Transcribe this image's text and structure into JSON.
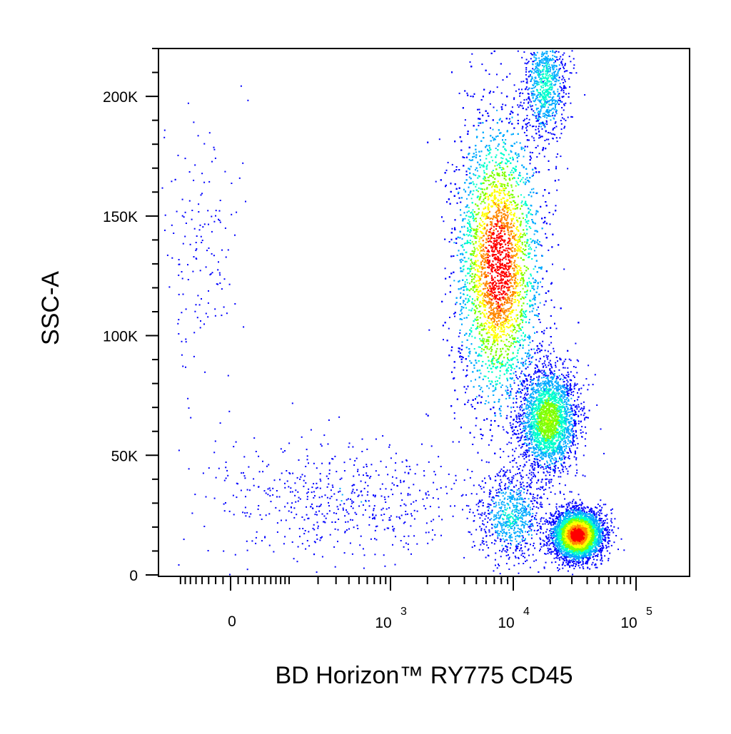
{
  "chart_data": {
    "type": "scatter",
    "subtype": "flow-cytometry-density-dot-plot",
    "title": "",
    "xlabel": "BD Horizon™ RY775 CD45",
    "ylabel": "SSC-A",
    "x_scale": "biexponential",
    "x_ticks": [
      {
        "value": 0,
        "base": "0",
        "exp": ""
      },
      {
        "value": 1000,
        "base": "10",
        "exp": "3"
      },
      {
        "value": 10000,
        "base": "10",
        "exp": "4"
      },
      {
        "value": 100000,
        "base": "10",
        "exp": "5"
      }
    ],
    "y_ticks": [
      {
        "value": 0,
        "label": "0"
      },
      {
        "value": 50000,
        "label": "50K"
      },
      {
        "value": 100000,
        "label": "100K"
      },
      {
        "value": 150000,
        "label": "150K"
      },
      {
        "value": 200000,
        "label": "200K"
      }
    ],
    "ylim": [
      0,
      220000
    ],
    "grid": false,
    "legend": "none",
    "colormap": [
      "#0000ff",
      "#00aaff",
      "#00ffcc",
      "#7fff00",
      "#ffff00",
      "#ff8800",
      "#ff0000"
    ],
    "populations": [
      {
        "cd45": -40,
        "ssc_center": 140000,
        "ssc_spread": 28000,
        "x_spread_decades": 0.18,
        "count": 160,
        "peak_density": 0.05
      },
      {
        "cd45": 30,
        "ssc_center": 30000,
        "ssc_spread": 18000,
        "x_spread_decades": 0.25,
        "count": 60,
        "peak_density": 0.05
      },
      {
        "cd45": 400,
        "ssc_center": 32000,
        "ssc_spread": 12000,
        "x_spread_decades": 0.45,
        "count": 520,
        "peak_density": 0.12
      },
      {
        "cd45": 7500,
        "ssc_center": 130000,
        "ssc_spread": 30000,
        "x_spread_decades": 0.17,
        "count": 11000,
        "peak_density": 1.0
      },
      {
        "cd45": 18000,
        "ssc_center": 205000,
        "ssc_spread": 12000,
        "x_spread_decades": 0.09,
        "count": 900,
        "peak_density": 0.35
      },
      {
        "cd45": 19000,
        "ssc_center": 65000,
        "ssc_spread": 11000,
        "x_spread_decades": 0.12,
        "count": 2600,
        "peak_density": 0.55
      },
      {
        "cd45": 9500,
        "ssc_center": 25000,
        "ssc_spread": 9000,
        "x_spread_decades": 0.14,
        "count": 800,
        "peak_density": 0.3
      },
      {
        "cd45": 33000,
        "ssc_center": 17000,
        "ssc_spread": 5000,
        "x_spread_decades": 0.1,
        "count": 4200,
        "peak_density": 1.0
      }
    ]
  }
}
